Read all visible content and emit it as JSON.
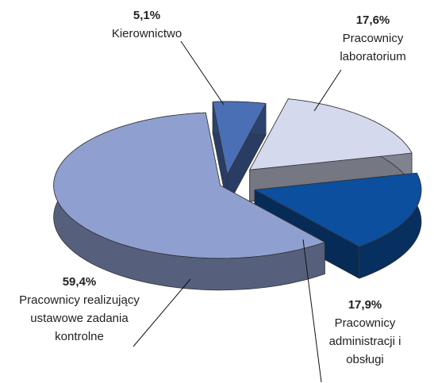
{
  "chart_data": {
    "type": "pie",
    "categories": [
      "Kierownictwo",
      "Pracownicy laboratorium",
      "Pracownicy administracji i obsługi",
      "Pracownicy realizujący ustawowe zadania kontrolne"
    ],
    "values": [
      5.1,
      17.6,
      17.9,
      59.4
    ],
    "value_labels": [
      "5,1%",
      "17,6%",
      "17,9%",
      "59,4%"
    ],
    "colors": [
      "#4a6fb5",
      "#d5d9ee",
      "#0b4f9e",
      "#8fa0d0"
    ]
  }
}
